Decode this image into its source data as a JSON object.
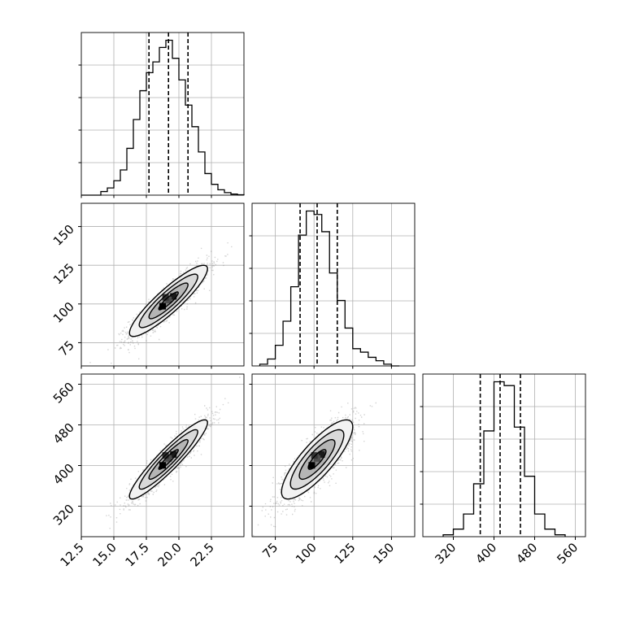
{
  "chart_data": {
    "type": "corner",
    "colors": {
      "line": "#000000",
      "grid": "#b0b0b0",
      "points": "#7a7a7a"
    },
    "grid": true,
    "parameters": [
      {
        "range": [
          12.5,
          25
        ],
        "ticks": [
          12.5,
          15.0,
          17.5,
          20.0,
          22.5
        ],
        "tick_labels": [
          "12.5",
          "15.0",
          "17.5",
          "20.0",
          "22.5"
        ]
      },
      {
        "range": [
          60,
          165
        ],
        "ticks": [
          75,
          100,
          125,
          150
        ],
        "tick_labels": [
          "75",
          "100",
          "125",
          "150"
        ]
      },
      {
        "range": [
          260,
          580
        ],
        "ticks": [
          320,
          400,
          480,
          560
        ],
        "tick_labels": [
          "320",
          "400",
          "480",
          "560"
        ]
      }
    ],
    "diagonal": [
      {
        "param": 0,
        "bin_edges": [
          12.5,
          13.0,
          13.5,
          14.0,
          14.5,
          15.0,
          15.5,
          16.0,
          16.5,
          17.0,
          17.5,
          18.0,
          18.5,
          19.0,
          19.5,
          20.0,
          20.5,
          21.0,
          21.5,
          22.0,
          22.5,
          23.0,
          23.5,
          24.0,
          24.5,
          25.0
        ],
        "counts": [
          0,
          0,
          0,
          1,
          2,
          4,
          7,
          13,
          21,
          29,
          34,
          37,
          41,
          43,
          38,
          32,
          25,
          19,
          12,
          6,
          3,
          1.5,
          0.7,
          0.3,
          0.1
        ],
        "quantiles": [
          17.7,
          19.2,
          20.7
        ]
      },
      {
        "param": 1,
        "bin_edges": [
          65,
          70,
          75,
          80,
          85,
          90,
          95,
          100,
          105,
          110,
          115,
          120,
          125,
          130,
          135,
          140,
          145,
          150,
          155
        ],
        "counts": [
          0.5,
          2,
          6,
          13,
          23,
          38,
          45,
          44,
          39,
          27,
          19,
          11,
          5,
          4,
          2.5,
          1.5,
          0.5,
          0
        ],
        "quantiles": [
          91,
          102,
          115
        ]
      },
      {
        "param": 2,
        "bin_edges": [
          300,
          320,
          340,
          360,
          380,
          400,
          420,
          440,
          460,
          480,
          500,
          520,
          540
        ],
        "counts": [
          0.5,
          2,
          6,
          14,
          28,
          41,
          40,
          29,
          16,
          6,
          2,
          0.5
        ],
        "quantiles": [
          373,
          412,
          452
        ]
      }
    ],
    "pairs": [
      {
        "x": 0,
        "y": 1,
        "mean": [
          19.2,
          102
        ],
        "sd": [
          1.5,
          11.5
        ],
        "corr": 0.9
      },
      {
        "x": 0,
        "y": 2,
        "mean": [
          19.2,
          412
        ],
        "sd": [
          1.5,
          39
        ],
        "corr": 0.93
      },
      {
        "x": 1,
        "y": 2,
        "mean": [
          102,
          412
        ],
        "sd": [
          11.5,
          39
        ],
        "corr": 0.82
      }
    ]
  }
}
